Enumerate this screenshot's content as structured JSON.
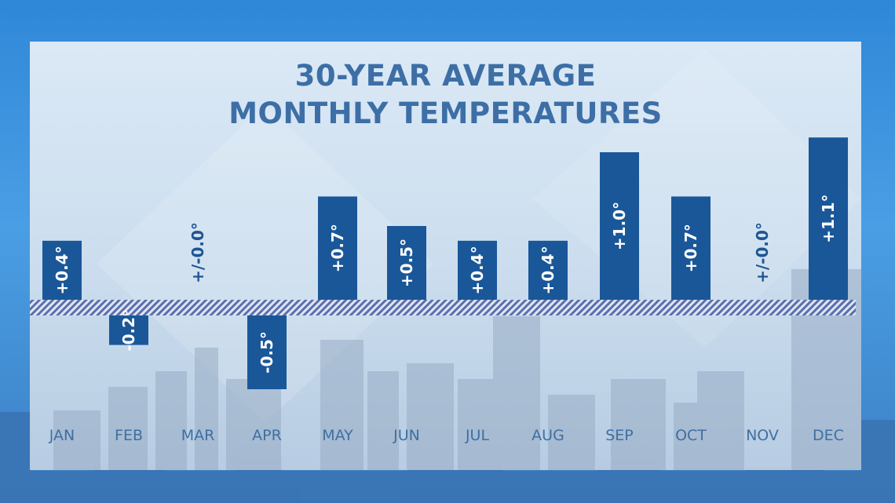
{
  "title_line1": "30-YEAR AVERAGE",
  "title_line2": "MONTHLY TEMPERATURES",
  "colors": {
    "bar": "#1a5799",
    "axis_hatch": "#5a6fb0",
    "text": "#3d6fa6"
  },
  "chart_data": {
    "type": "bar",
    "title": "30-YEAR AVERAGE MONTHLY TEMPERATURES",
    "categories": [
      "JAN",
      "FEB",
      "MAR",
      "APR",
      "MAY",
      "JUN",
      "JUL",
      "AUG",
      "SEP",
      "OCT",
      "NOV",
      "DEC"
    ],
    "values": [
      0.4,
      -0.2,
      0.0,
      -0.5,
      0.7,
      0.5,
      0.4,
      0.4,
      1.0,
      0.7,
      0.0,
      1.1
    ],
    "labels": [
      "+0.4°",
      "-0.2°",
      "+/-0.0°",
      "-0.5°",
      "+0.7°",
      "+0.5°",
      "+0.4°",
      "+0.4°",
      "+1.0°",
      "+0.7°",
      "+/-0.0°",
      "+1.1°"
    ],
    "xlabel": "",
    "ylabel": "",
    "ylim": [
      -0.6,
      1.2
    ],
    "grid": false,
    "legend": "none"
  }
}
